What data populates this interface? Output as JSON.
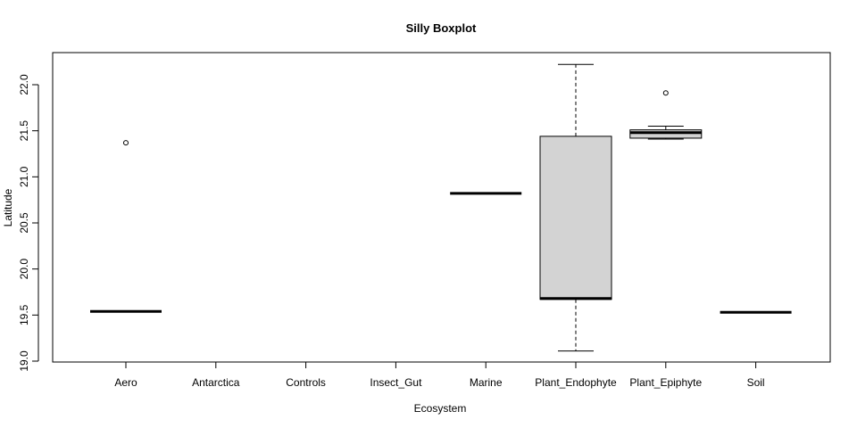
{
  "chart_data": {
    "type": "boxplot",
    "title": "Silly Boxplot",
    "xlabel": "Ecosystem",
    "ylabel": "Latitude",
    "ylim": [
      19.0,
      22.25
    ],
    "yticks": [
      19.0,
      19.5,
      20.0,
      20.5,
      21.0,
      21.5,
      22.0
    ],
    "ytick_labels": [
      "19.0",
      "19.5",
      "20.0",
      "20.5",
      "21.0",
      "21.5",
      "22.0"
    ],
    "categories": [
      "Aero",
      "Antarctica",
      "Controls",
      "Insect_Gut",
      "Marine",
      "Plant_Endophyte",
      "Plant_Epiphyte",
      "Soil"
    ],
    "boxes": [
      {
        "category": "Aero",
        "min": 19.54,
        "q1": 19.54,
        "median": 19.54,
        "q3": 19.54,
        "max": 19.54,
        "outliers": [
          21.37
        ]
      },
      {
        "category": "Antarctica",
        "min": null,
        "q1": null,
        "median": null,
        "q3": null,
        "max": null,
        "outliers": []
      },
      {
        "category": "Controls",
        "min": null,
        "q1": null,
        "median": null,
        "q3": null,
        "max": null,
        "outliers": []
      },
      {
        "category": "Insect_Gut",
        "min": null,
        "q1": null,
        "median": null,
        "q3": null,
        "max": null,
        "outliers": []
      },
      {
        "category": "Marine",
        "min": 20.82,
        "q1": 20.82,
        "median": 20.82,
        "q3": 20.82,
        "max": 20.82,
        "outliers": []
      },
      {
        "category": "Plant_Endophyte",
        "min": 19.11,
        "q1": 19.67,
        "median": 19.68,
        "q3": 21.44,
        "max": 22.22,
        "outliers": []
      },
      {
        "category": "Plant_Epiphyte",
        "min": 21.41,
        "q1": 21.42,
        "median": 21.48,
        "q3": 21.51,
        "max": 21.55,
        "outliers": [
          21.91
        ]
      },
      {
        "category": "Soil",
        "min": 19.53,
        "q1": 19.53,
        "median": 19.53,
        "q3": 19.53,
        "max": 19.53,
        "outliers": []
      }
    ],
    "box_fill": "#d3d3d3",
    "grid": false,
    "legend": "none"
  }
}
